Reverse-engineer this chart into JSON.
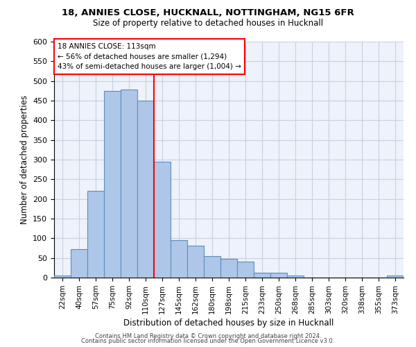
{
  "title1": "18, ANNIES CLOSE, HUCKNALL, NOTTINGHAM, NG15 6FR",
  "title2": "Size of property relative to detached houses in Hucknall",
  "xlabel": "Distribution of detached houses by size in Hucknall",
  "ylabel": "Number of detached properties",
  "categories": [
    "22sqm",
    "40sqm",
    "57sqm",
    "75sqm",
    "92sqm",
    "110sqm",
    "127sqm",
    "145sqm",
    "162sqm",
    "180sqm",
    "198sqm",
    "215sqm",
    "233sqm",
    "250sqm",
    "268sqm",
    "285sqm",
    "303sqm",
    "320sqm",
    "338sqm",
    "355sqm",
    "373sqm"
  ],
  "values": [
    5,
    72,
    220,
    475,
    478,
    450,
    295,
    96,
    81,
    55,
    47,
    41,
    13,
    12,
    5,
    0,
    0,
    0,
    0,
    0,
    5
  ],
  "bar_color": "#aec6e8",
  "bar_edge_color": "#5a8fc2",
  "vline_position": 5.5,
  "vline_color": "red",
  "annotation_title": "18 ANNIES CLOSE: 113sqm",
  "annotation_line1": "← 56% of detached houses are smaller (1,294)",
  "annotation_line2": "43% of semi-detached houses are larger (1,004) →",
  "ylim_max": 600,
  "yticks": [
    0,
    50,
    100,
    150,
    200,
    250,
    300,
    350,
    400,
    450,
    500,
    550,
    600
  ],
  "footer1": "Contains HM Land Registry data © Crown copyright and database right 2024.",
  "footer2": "Contains public sector information licensed under the Open Government Licence v3.0.",
  "bg_color": "#eef2fa",
  "grid_color": "#c8d0e0"
}
